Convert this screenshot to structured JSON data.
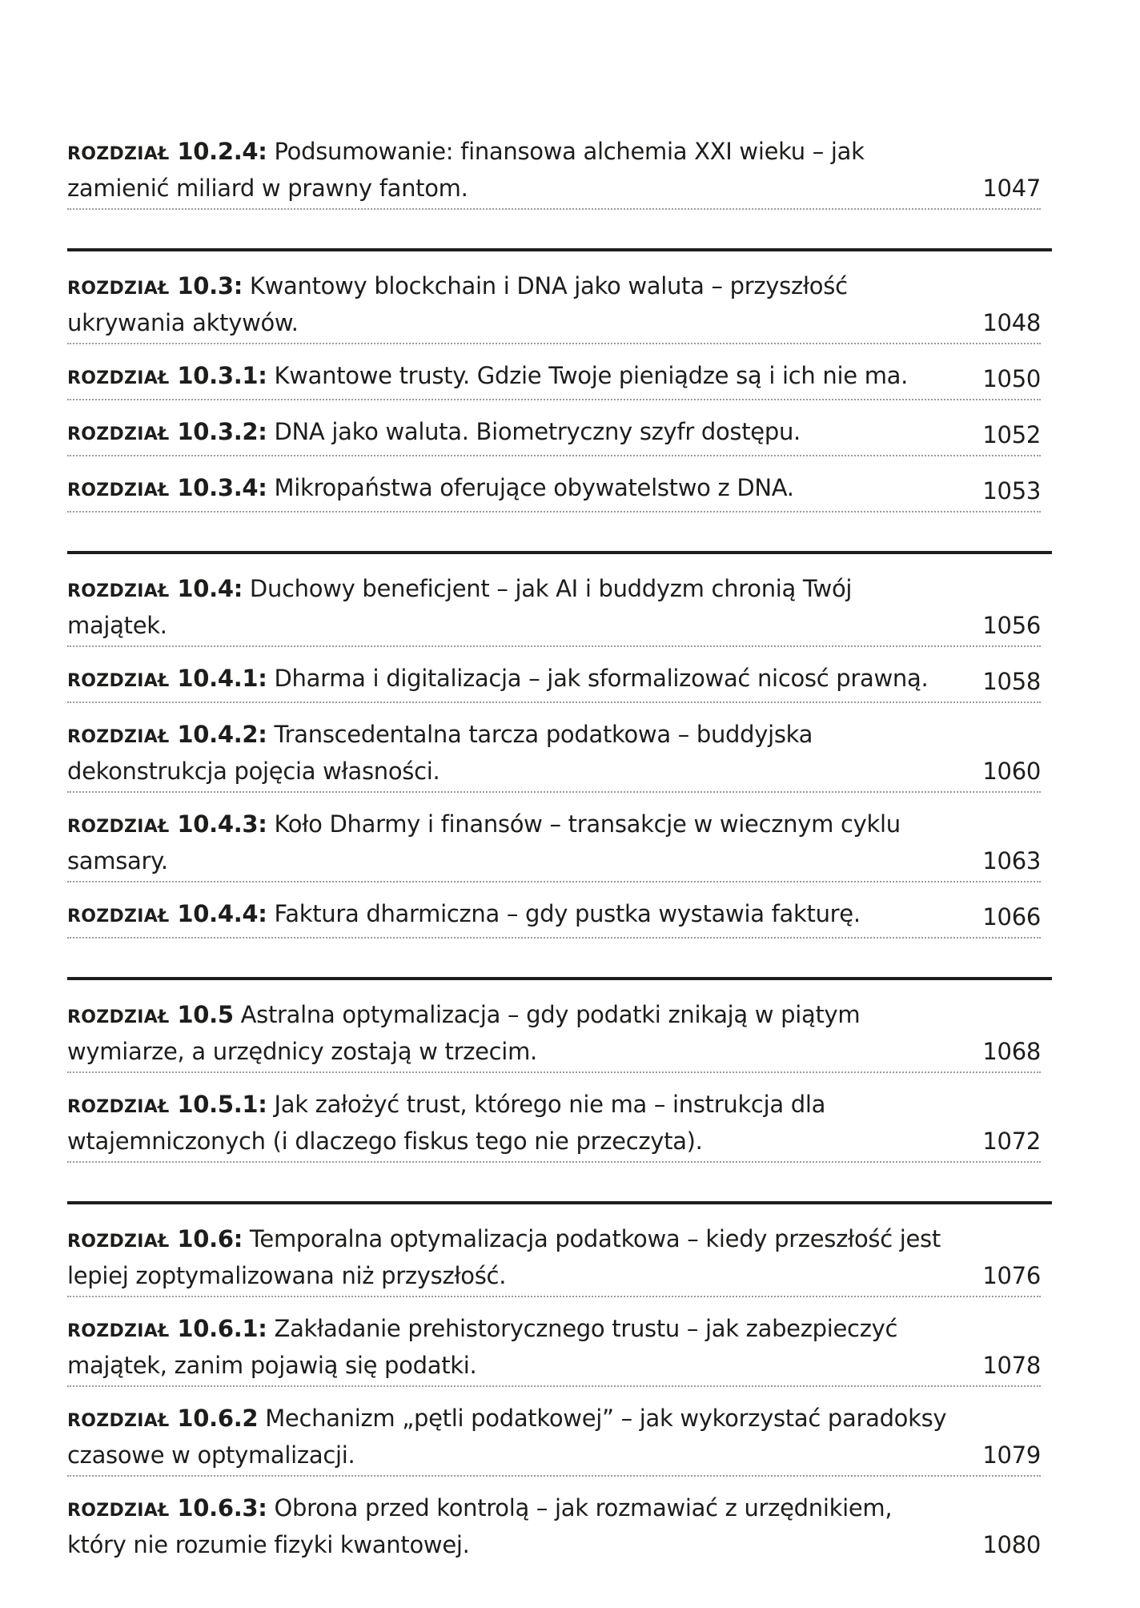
{
  "toc": {
    "sections": [
      {
        "entries": [
          {
            "word": "ROZDZIAŁ",
            "num": " 10.2.4:",
            "title": " Podsumowanie: finansowa alchemia XXI wieku – jak zamienić miliard w prawny fantom.",
            "page": "1047"
          }
        ]
      },
      {
        "entries": [
          {
            "word": "ROZDZIAŁ",
            "num": " 10.3:",
            "title": " Kwantowy blockchain i DNA jako waluta – przyszłość ukrywania aktywów.",
            "page": "1048"
          },
          {
            "word": "ROZDZIAŁ",
            "num": " 10.3.1:",
            "title": " Kwantowe trusty. Gdzie Twoje pieniądze są i ich nie ma.",
            "page": "1050"
          },
          {
            "word": "ROZDZIAŁ",
            "num": " 10.3.2:",
            "title": " DNA jako waluta. Biometryczny szyfr dostępu.",
            "page": "1052"
          },
          {
            "word": "ROZDZIAŁ",
            "num": " 10.3.4:",
            "title": " Mikropaństwa oferujące obywatelstwo z DNA.",
            "page": "1053"
          }
        ]
      },
      {
        "entries": [
          {
            "word": "ROZDZIAŁ",
            "num": " 10.4:",
            "title": " Duchowy beneficjent – jak AI i buddyzm chronią Twój majątek.",
            "page": "1056"
          },
          {
            "word": "ROZDZIAŁ",
            "num": " 10.4.1:",
            "title": " Dharma i digitalizacja – jak sformalizować nicosć prawną.",
            "page": "1058"
          },
          {
            "word": "ROZDZIAŁ",
            "num": " 10.4.2:",
            "title": " Transcedentalna tarcza podatkowa – buddyjska dekonstrukcja pojęcia własności.",
            "page": "1060"
          },
          {
            "word": "ROZDZIAŁ",
            "num": " 10.4.3:",
            "title": " Koło Dharmy i finansów – transakcje w wiecznym cyklu samsary.",
            "page": "1063"
          },
          {
            "word": "ROZDZIAŁ",
            "num": " 10.4.4:",
            "title": " Faktura dharmiczna – gdy pustka wystawia fakturę.",
            "page": "1066"
          }
        ]
      },
      {
        "entries": [
          {
            "word": "ROZDZIAŁ",
            "num": " 10.5",
            "title": " Astralna optymalizacja – gdy podatki znikają w piątym wymiarze, a urzędnicy zostają w trzecim.",
            "page": "1068"
          },
          {
            "word": "ROZDZIAŁ",
            "num": " 10.5.1:",
            "title": " Jak założyć trust, którego nie ma – instrukcja dla wtajemniczonych (i dlaczego fiskus tego nie przeczyta).",
            "page": "1072"
          }
        ]
      },
      {
        "entries": [
          {
            "word": "ROZDZIAŁ",
            "num": " 10.6:",
            "title": " Temporalna optymalizacja podatkowa – kiedy przeszłość jest lepiej zoptymalizowana niż przyszłość.",
            "page": "1076"
          },
          {
            "word": "ROZDZIAŁ",
            "num": " 10.6.1:",
            "title": " Zakładanie prehistorycznego trustu – jak zabezpieczyć majątek, zanim pojawią się podatki.",
            "page": "1078"
          },
          {
            "word": "ROZDZIAŁ",
            "num": " 10.6.2",
            "title": " Mechanizm „pętli podatkowej” – jak wykorzystać paradoksy czasowe w optymalizacji.",
            "page": "1079"
          },
          {
            "word": "ROZDZIAŁ",
            "num": " 10.6.3:",
            "title": " Obrona przed kontrolą – jak rozmawiać z urzędnikiem, który nie rozumie fizyki kwantowej.",
            "page": "1080"
          }
        ]
      }
    ]
  }
}
